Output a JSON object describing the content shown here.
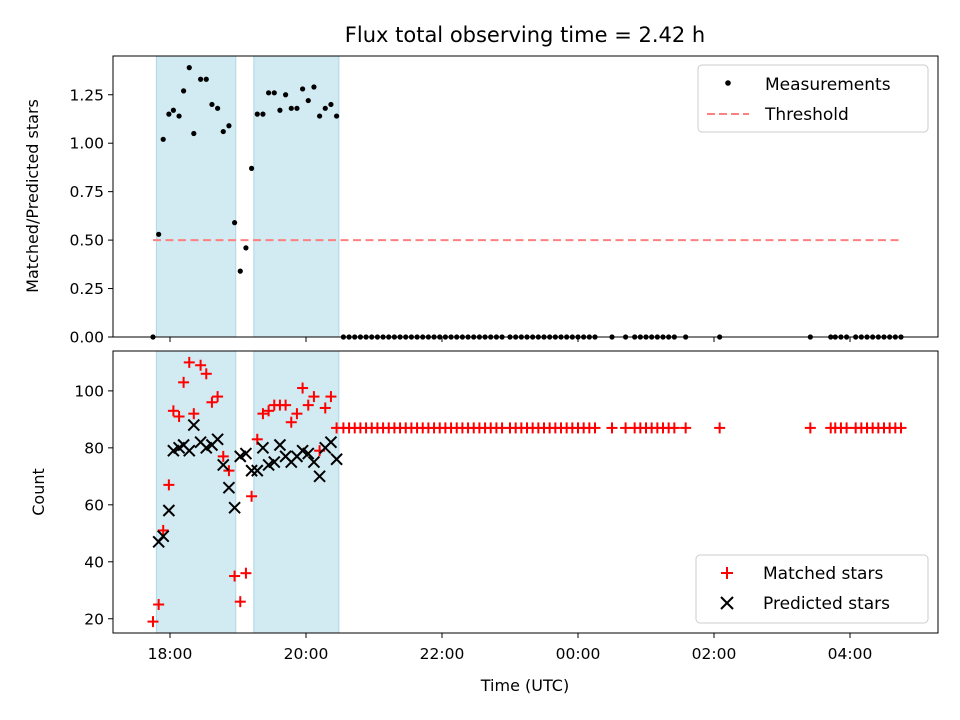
{
  "chart_data": [
    {
      "type": "scatter",
      "title": "Flux total observing time = 2.42 h",
      "ylabel": "Matched/Predicted stars",
      "xlabel": "",
      "ylim": [
        0,
        1.45
      ],
      "yticks": [
        "0.00",
        "0.25",
        "0.50",
        "0.75",
        "1.00",
        "1.25"
      ],
      "ytick_values": [
        0,
        0.25,
        0.5,
        0.75,
        1.0,
        1.25
      ],
      "threshold": 0.5,
      "threshold_range": [
        "17:45",
        "04:45"
      ],
      "legend": {
        "placement": "top-right",
        "entries": [
          "Measurements",
          "Threshold"
        ]
      },
      "series": [
        {
          "name": "Measurements",
          "color": "#000000",
          "points": [
            [
              "17:45",
              0.0
            ],
            [
              "17:50",
              0.53
            ],
            [
              "17:54",
              1.02
            ],
            [
              "17:59",
              1.15
            ],
            [
              "18:03",
              1.17
            ],
            [
              "18:08",
              1.14
            ],
            [
              "18:12",
              1.27
            ],
            [
              "18:17",
              1.39
            ],
            [
              "18:21",
              1.05
            ],
            [
              "18:27",
              1.33
            ],
            [
              "18:32",
              1.33
            ],
            [
              "18:37",
              1.2
            ],
            [
              "18:42",
              1.18
            ],
            [
              "18:47",
              1.06
            ],
            [
              "18:52",
              1.09
            ],
            [
              "18:57",
              0.59
            ],
            [
              "19:02",
              0.34
            ],
            [
              "19:07",
              0.46
            ],
            [
              "19:12",
              0.87
            ],
            [
              "19:17",
              1.15
            ],
            [
              "19:22",
              1.15
            ],
            [
              "19:27",
              1.26
            ],
            [
              "19:32",
              1.26
            ],
            [
              "19:37",
              1.17
            ],
            [
              "19:42",
              1.25
            ],
            [
              "19:47",
              1.18
            ],
            [
              "19:52",
              1.18
            ],
            [
              "19:57",
              1.28
            ],
            [
              "20:02",
              1.22
            ],
            [
              "20:07",
              1.29
            ],
            [
              "20:12",
              1.14
            ],
            [
              "20:17",
              1.18
            ],
            [
              "20:22",
              1.2
            ],
            [
              "20:27",
              1.14
            ],
            [
              "20:33",
              0.0
            ],
            [
              "20:38",
              0.0
            ],
            [
              "20:43",
              0.0
            ],
            [
              "20:48",
              0.0
            ],
            [
              "20:53",
              0.0
            ],
            [
              "20:58",
              0.0
            ],
            [
              "21:03",
              0.0
            ],
            [
              "21:08",
              0.0
            ],
            [
              "21:13",
              0.0
            ],
            [
              "21:18",
              0.0
            ],
            [
              "21:23",
              0.0
            ],
            [
              "21:28",
              0.0
            ],
            [
              "21:33",
              0.0
            ],
            [
              "21:38",
              0.0
            ],
            [
              "21:43",
              0.0
            ],
            [
              "21:48",
              0.0
            ],
            [
              "21:53",
              0.0
            ],
            [
              "21:58",
              0.0
            ],
            [
              "22:03",
              0.0
            ],
            [
              "22:08",
              0.0
            ],
            [
              "22:13",
              0.0
            ],
            [
              "22:18",
              0.0
            ],
            [
              "22:23",
              0.0
            ],
            [
              "22:28",
              0.0
            ],
            [
              "22:33",
              0.0
            ],
            [
              "22:38",
              0.0
            ],
            [
              "22:43",
              0.0
            ],
            [
              "22:48",
              0.0
            ],
            [
              "22:53",
              0.0
            ],
            [
              "23:00",
              0.0
            ],
            [
              "23:05",
              0.0
            ],
            [
              "23:10",
              0.0
            ],
            [
              "23:15",
              0.0
            ],
            [
              "23:20",
              0.0
            ],
            [
              "23:25",
              0.0
            ],
            [
              "23:30",
              0.0
            ],
            [
              "23:35",
              0.0
            ],
            [
              "23:40",
              0.0
            ],
            [
              "23:45",
              0.0
            ],
            [
              "23:50",
              0.0
            ],
            [
              "23:55",
              0.0
            ],
            [
              "00:00",
              0.0
            ],
            [
              "00:05",
              0.0
            ],
            [
              "00:10",
              0.0
            ],
            [
              "00:15",
              0.0
            ],
            [
              "00:30",
              0.0
            ],
            [
              "00:42",
              0.0
            ],
            [
              "00:50",
              0.0
            ],
            [
              "00:55",
              0.0
            ],
            [
              "01:00",
              0.0
            ],
            [
              "01:05",
              0.0
            ],
            [
              "01:10",
              0.0
            ],
            [
              "01:15",
              0.0
            ],
            [
              "01:20",
              0.0
            ],
            [
              "01:25",
              0.0
            ],
            [
              "01:35",
              0.0
            ],
            [
              "02:05",
              0.0
            ],
            [
              "03:25",
              0.0
            ],
            [
              "03:43",
              0.0
            ],
            [
              "03:47",
              0.0
            ],
            [
              "03:52",
              0.0
            ],
            [
              "03:57",
              0.0
            ],
            [
              "04:05",
              0.0
            ],
            [
              "04:10",
              0.0
            ],
            [
              "04:15",
              0.0
            ],
            [
              "04:20",
              0.0
            ],
            [
              "04:25",
              0.0
            ],
            [
              "04:30",
              0.0
            ],
            [
              "04:35",
              0.0
            ],
            [
              "04:40",
              0.0
            ],
            [
              "04:45",
              0.0
            ]
          ]
        }
      ]
    },
    {
      "type": "scatter",
      "title": "",
      "ylabel": "Count",
      "xlabel": "Time (UTC)",
      "ylim": [
        15,
        114
      ],
      "yticks": [
        "20",
        "40",
        "60",
        "80",
        "100"
      ],
      "ytick_values": [
        20,
        40,
        60,
        80,
        100
      ],
      "xticks": [
        "18:00",
        "20:00",
        "22:00",
        "00:00",
        "02:00",
        "04:00"
      ],
      "legend": {
        "placement": "bottom-right",
        "entries": [
          "Matched stars",
          "Predicted stars"
        ]
      },
      "series": [
        {
          "name": "Matched stars",
          "color": "#ff0000",
          "marker": "+",
          "points": [
            [
              "17:45",
              19
            ],
            [
              "17:50",
              25
            ],
            [
              "17:54",
              51
            ],
            [
              "17:59",
              67
            ],
            [
              "18:03",
              93
            ],
            [
              "18:08",
              91
            ],
            [
              "18:12",
              103
            ],
            [
              "18:17",
              110
            ],
            [
              "18:21",
              92
            ],
            [
              "18:27",
              109
            ],
            [
              "18:32",
              106
            ],
            [
              "18:37",
              96
            ],
            [
              "18:42",
              98
            ],
            [
              "18:47",
              77
            ],
            [
              "18:52",
              72
            ],
            [
              "18:57",
              35
            ],
            [
              "19:02",
              26
            ],
            [
              "19:07",
              36
            ],
            [
              "19:12",
              63
            ],
            [
              "19:17",
              83
            ],
            [
              "19:22",
              92
            ],
            [
              "19:27",
              93
            ],
            [
              "19:32",
              95
            ],
            [
              "19:37",
              95
            ],
            [
              "19:42",
              95
            ],
            [
              "19:47",
              89
            ],
            [
              "19:52",
              92
            ],
            [
              "19:57",
              101
            ],
            [
              "20:02",
              95
            ],
            [
              "20:07",
              98
            ],
            [
              "20:12",
              79
            ],
            [
              "20:17",
              94
            ],
            [
              "20:22",
              98
            ],
            [
              "20:27",
              87
            ],
            [
              "20:33",
              87
            ],
            [
              "20:38",
              87
            ],
            [
              "20:43",
              87
            ],
            [
              "20:48",
              87
            ],
            [
              "20:53",
              87
            ],
            [
              "20:58",
              87
            ],
            [
              "21:03",
              87
            ],
            [
              "21:08",
              87
            ],
            [
              "21:13",
              87
            ],
            [
              "21:18",
              87
            ],
            [
              "21:23",
              87
            ],
            [
              "21:28",
              87
            ],
            [
              "21:33",
              87
            ],
            [
              "21:38",
              87
            ],
            [
              "21:43",
              87
            ],
            [
              "21:48",
              87
            ],
            [
              "21:53",
              87
            ],
            [
              "21:58",
              87
            ],
            [
              "22:03",
              87
            ],
            [
              "22:08",
              87
            ],
            [
              "22:13",
              87
            ],
            [
              "22:18",
              87
            ],
            [
              "22:23",
              87
            ],
            [
              "22:28",
              87
            ],
            [
              "22:33",
              87
            ],
            [
              "22:38",
              87
            ],
            [
              "22:43",
              87
            ],
            [
              "22:48",
              87
            ],
            [
              "22:53",
              87
            ],
            [
              "23:00",
              87
            ],
            [
              "23:05",
              87
            ],
            [
              "23:10",
              87
            ],
            [
              "23:15",
              87
            ],
            [
              "23:20",
              87
            ],
            [
              "23:25",
              87
            ],
            [
              "23:30",
              87
            ],
            [
              "23:35",
              87
            ],
            [
              "23:40",
              87
            ],
            [
              "23:45",
              87
            ],
            [
              "23:50",
              87
            ],
            [
              "23:55",
              87
            ],
            [
              "00:00",
              87
            ],
            [
              "00:05",
              87
            ],
            [
              "00:10",
              87
            ],
            [
              "00:15",
              87
            ],
            [
              "00:30",
              87
            ],
            [
              "00:42",
              87
            ],
            [
              "00:50",
              87
            ],
            [
              "00:55",
              87
            ],
            [
              "01:00",
              87
            ],
            [
              "01:05",
              87
            ],
            [
              "01:10",
              87
            ],
            [
              "01:15",
              87
            ],
            [
              "01:20",
              87
            ],
            [
              "01:25",
              87
            ],
            [
              "01:35",
              87
            ],
            [
              "02:05",
              87
            ],
            [
              "03:25",
              87
            ],
            [
              "03:43",
              87
            ],
            [
              "03:47",
              87
            ],
            [
              "03:52",
              87
            ],
            [
              "03:57",
              87
            ],
            [
              "04:05",
              87
            ],
            [
              "04:10",
              87
            ],
            [
              "04:15",
              87
            ],
            [
              "04:20",
              87
            ],
            [
              "04:25",
              87
            ],
            [
              "04:30",
              87
            ],
            [
              "04:35",
              87
            ],
            [
              "04:40",
              87
            ],
            [
              "04:45",
              87
            ]
          ]
        },
        {
          "name": "Predicted stars",
          "color": "#000000",
          "marker": "x",
          "points": [
            [
              "17:50",
              47
            ],
            [
              "17:54",
              49
            ],
            [
              "17:59",
              58
            ],
            [
              "18:03",
              79
            ],
            [
              "18:08",
              80
            ],
            [
              "18:12",
              81
            ],
            [
              "18:17",
              79
            ],
            [
              "18:21",
              88
            ],
            [
              "18:27",
              82
            ],
            [
              "18:32",
              80
            ],
            [
              "18:37",
              81
            ],
            [
              "18:42",
              83
            ],
            [
              "18:47",
              74
            ],
            [
              "18:52",
              66
            ],
            [
              "18:57",
              59
            ],
            [
              "19:02",
              77
            ],
            [
              "19:07",
              78
            ],
            [
              "19:12",
              72
            ],
            [
              "19:17",
              72
            ],
            [
              "19:22",
              80
            ],
            [
              "19:27",
              74
            ],
            [
              "19:32",
              75
            ],
            [
              "19:37",
              81
            ],
            [
              "19:42",
              77
            ],
            [
              "19:47",
              75
            ],
            [
              "19:52",
              77
            ],
            [
              "19:57",
              79
            ],
            [
              "20:02",
              78
            ],
            [
              "20:07",
              75
            ],
            [
              "20:12",
              70
            ],
            [
              "20:17",
              80
            ],
            [
              "20:22",
              82
            ],
            [
              "20:27",
              76
            ]
          ]
        }
      ]
    }
  ],
  "shaded_intervals": [
    [
      "17:48",
      "18:58"
    ],
    [
      "19:14",
      "20:29"
    ]
  ],
  "shade_color": "#add8e6"
}
